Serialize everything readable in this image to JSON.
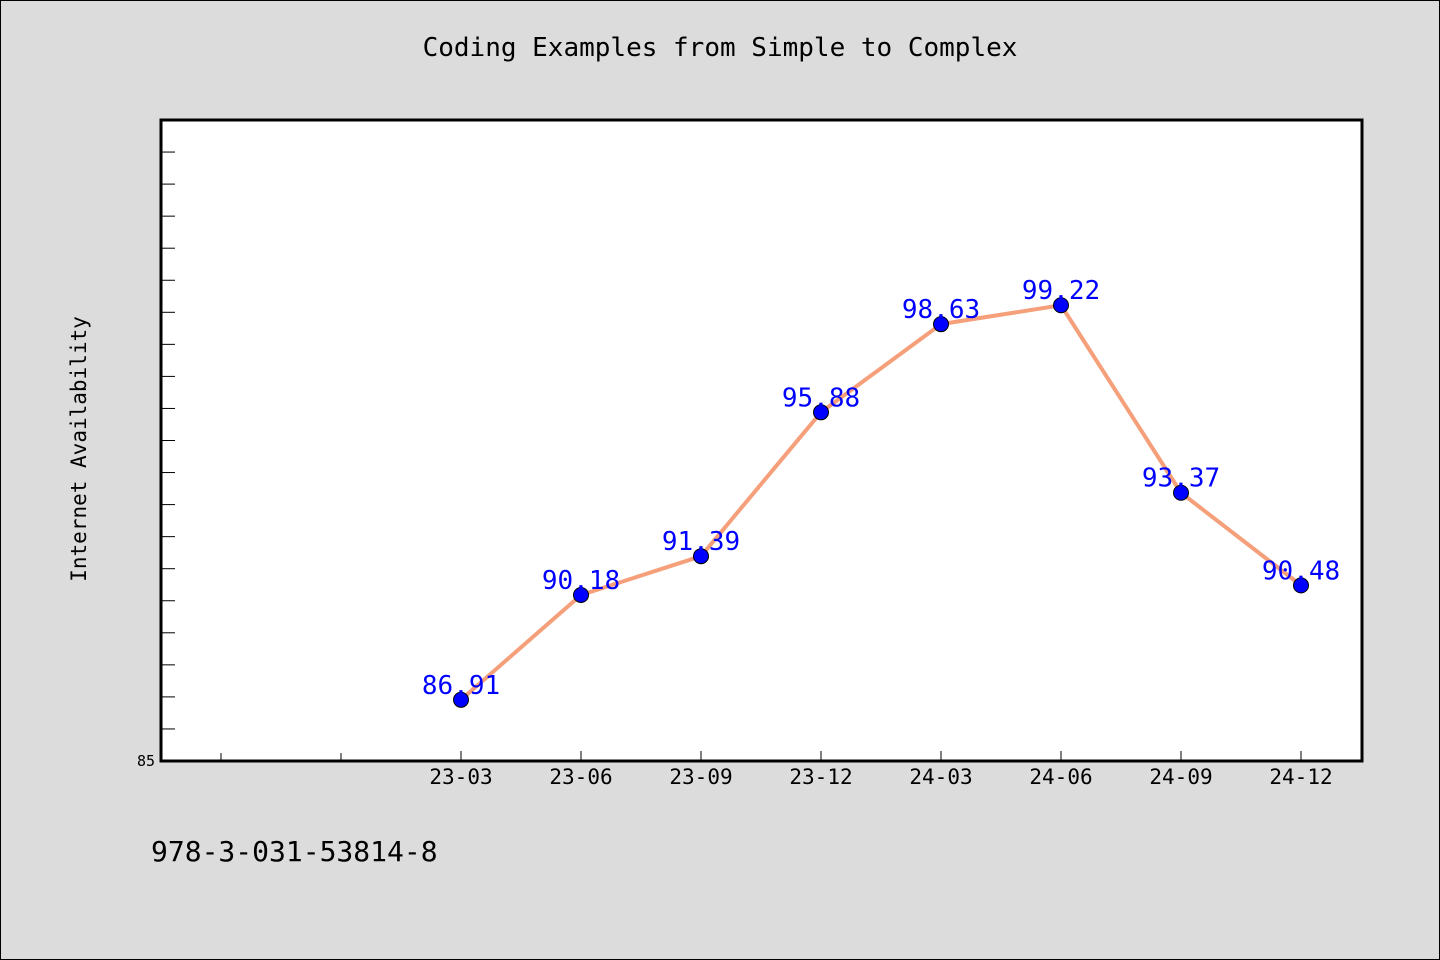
{
  "chart_data": {
    "type": "line",
    "title": "Coding Examples from Simple to Complex",
    "xlabel": "",
    "ylabel": "Internet Availability",
    "categories": [
      "23-03",
      "23-06",
      "23-09",
      "23-12",
      "24-03",
      "24-06",
      "24-09",
      "24-12"
    ],
    "series": [
      {
        "values": [
          86.91,
          90.18,
          91.39,
          95.88,
          98.63,
          99.22,
          93.37,
          90.48
        ],
        "labels": [
          "86.91",
          "90.18",
          "91.39",
          "95.88",
          "98.63",
          "99.22",
          "93.37",
          "90.48"
        ],
        "line_color": "#f5a07a",
        "marker_color": "#0000ff",
        "label_color": "#0000ff"
      }
    ],
    "ylim": [
      85,
      105
    ],
    "y_tick_labels": [
      "85"
    ],
    "grid": false,
    "legend": "none"
  },
  "footer": {
    "isbn": "978-3-031-53814-8"
  }
}
